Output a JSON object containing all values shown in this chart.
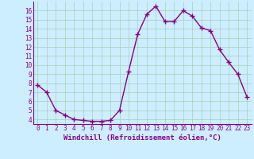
{
  "x": [
    0,
    1,
    2,
    3,
    4,
    5,
    6,
    7,
    8,
    9,
    10,
    11,
    12,
    13,
    14,
    15,
    16,
    17,
    18,
    19,
    20,
    21,
    22,
    23
  ],
  "y": [
    7.8,
    7.0,
    5.0,
    4.5,
    4.0,
    3.9,
    3.8,
    3.8,
    3.9,
    5.0,
    9.3,
    13.4,
    15.6,
    16.5,
    14.8,
    14.8,
    16.0,
    15.4,
    14.1,
    13.8,
    11.7,
    10.3,
    9.0,
    6.5
  ],
  "line_color": "#880088",
  "marker": "+",
  "marker_size": 4,
  "marker_edge_width": 1.0,
  "bg_color": "#cceeff",
  "grid_color": "#aaccbb",
  "xlabel": "Windchill (Refroidissement éolien,°C)",
  "xlabel_fontsize": 6.5,
  "xtick_fontsize": 5.5,
  "ytick_fontsize": 5.5,
  "xlim": [
    -0.5,
    23.5
  ],
  "ylim": [
    3.5,
    17.0
  ],
  "yticks": [
    4,
    5,
    6,
    7,
    8,
    9,
    10,
    11,
    12,
    13,
    14,
    15,
    16
  ],
  "xticks": [
    0,
    1,
    2,
    3,
    4,
    5,
    6,
    7,
    8,
    9,
    10,
    11,
    12,
    13,
    14,
    15,
    16,
    17,
    18,
    19,
    20,
    21,
    22,
    23
  ],
  "linewidth": 1.0,
  "spine_color": "#880088"
}
